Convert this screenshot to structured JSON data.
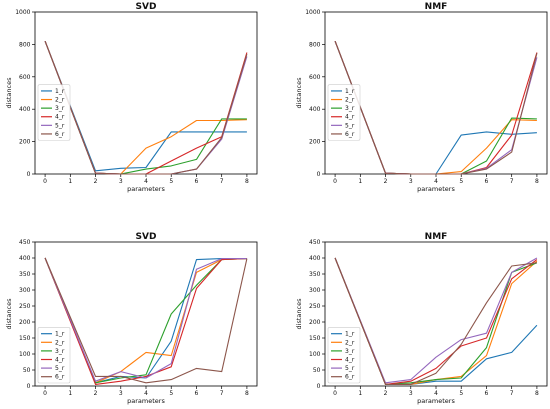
{
  "chart_data": [
    {
      "type": "line",
      "title": "SVD",
      "xlabel": "parameters",
      "ylabel": "distances",
      "xlim": [
        -0.4,
        8.4
      ],
      "ylim": [
        0,
        1000
      ],
      "xticks": [
        "0",
        "1",
        "2",
        "3",
        "4",
        "5",
        "6",
        "7",
        "8"
      ],
      "yticks": [
        "0",
        "200",
        "400",
        "600",
        "800",
        "1000"
      ],
      "legend_position": "center-left",
      "series": [
        {
          "name": "1_r",
          "color": "#1f77b4",
          "x": [
            0,
            2,
            3,
            4,
            5,
            6,
            7,
            8
          ],
          "y": [
            820,
            20,
            35,
            40,
            260,
            260,
            260,
            260
          ]
        },
        {
          "name": "2_r",
          "color": "#ff7f0e",
          "x": [
            0,
            2,
            3,
            4,
            5,
            6,
            7,
            8
          ],
          "y": [
            820,
            5,
            0,
            160,
            230,
            330,
            330,
            335
          ]
        },
        {
          "name": "3_r",
          "color": "#2ca02c",
          "x": [
            0,
            2,
            3,
            4,
            5,
            6,
            7,
            8
          ],
          "y": [
            820,
            5,
            0,
            30,
            50,
            90,
            340,
            340
          ]
        },
        {
          "name": "4_r",
          "color": "#d62728",
          "x": [
            0,
            2,
            3,
            4,
            5,
            6,
            7,
            8
          ],
          "y": [
            820,
            5,
            0,
            0,
            80,
            160,
            230,
            750
          ]
        },
        {
          "name": "5_r",
          "color": "#9467bd",
          "x": [
            0,
            2,
            3,
            4,
            5,
            6,
            7,
            8
          ],
          "y": [
            820,
            5,
            0,
            0,
            0,
            30,
            215,
            725
          ]
        },
        {
          "name": "6_r",
          "color": "#8c564b",
          "x": [
            0,
            2,
            3,
            4,
            5,
            6,
            7,
            8
          ],
          "y": [
            820,
            5,
            0,
            0,
            0,
            30,
            225,
            740
          ]
        }
      ]
    },
    {
      "type": "line",
      "title": "NMF",
      "xlabel": "parameters",
      "ylabel": "distances",
      "xlim": [
        -0.4,
        8.4
      ],
      "ylim": [
        0,
        1000
      ],
      "xticks": [
        "0",
        "1",
        "2",
        "3",
        "4",
        "5",
        "6",
        "7",
        "8"
      ],
      "yticks": [
        "0",
        "200",
        "400",
        "600",
        "800",
        "1000"
      ],
      "legend_position": "center-left",
      "series": [
        {
          "name": "1_r",
          "color": "#1f77b4",
          "x": [
            0,
            2,
            3,
            4,
            5,
            6,
            7,
            8
          ],
          "y": [
            820,
            5,
            0,
            0,
            240,
            260,
            245,
            255
          ]
        },
        {
          "name": "2_r",
          "color": "#ff7f0e",
          "x": [
            0,
            2,
            3,
            4,
            5,
            6,
            7,
            8
          ],
          "y": [
            820,
            5,
            0,
            0,
            15,
            160,
            335,
            330
          ]
        },
        {
          "name": "3_r",
          "color": "#2ca02c",
          "x": [
            0,
            2,
            3,
            4,
            5,
            6,
            7,
            8
          ],
          "y": [
            820,
            5,
            0,
            0,
            0,
            80,
            345,
            340
          ]
        },
        {
          "name": "4_r",
          "color": "#d62728",
          "x": [
            0,
            2,
            3,
            4,
            5,
            6,
            7,
            8
          ],
          "y": [
            820,
            5,
            0,
            0,
            0,
            40,
            240,
            750
          ]
        },
        {
          "name": "5_r",
          "color": "#9467bd",
          "x": [
            0,
            2,
            3,
            4,
            5,
            6,
            7,
            8
          ],
          "y": [
            820,
            5,
            0,
            0,
            0,
            35,
            150,
            720
          ]
        },
        {
          "name": "6_r",
          "color": "#8c564b",
          "x": [
            0,
            2,
            3,
            4,
            5,
            6,
            7,
            8
          ],
          "y": [
            820,
            5,
            0,
            0,
            0,
            30,
            135,
            745
          ]
        }
      ]
    },
    {
      "type": "line",
      "title": "SVD",
      "xlabel": "parameters",
      "ylabel": "distances",
      "xlim": [
        -0.4,
        8.4
      ],
      "ylim": [
        0,
        450
      ],
      "xticks": [
        "0",
        "1",
        "2",
        "3",
        "4",
        "5",
        "6",
        "7",
        "8"
      ],
      "yticks": [
        "0",
        "50",
        "100",
        "150",
        "200",
        "250",
        "300",
        "350",
        "400",
        "450"
      ],
      "legend_position": "lower-left",
      "series": [
        {
          "name": "1_r",
          "color": "#1f77b4",
          "x": [
            0,
            2,
            3,
            4,
            5,
            6,
            7,
            8
          ],
          "y": [
            400,
            10,
            30,
            25,
            140,
            395,
            398,
            398
          ]
        },
        {
          "name": "2_r",
          "color": "#ff7f0e",
          "x": [
            0,
            2,
            3,
            4,
            5,
            6,
            7,
            8
          ],
          "y": [
            400,
            10,
            45,
            105,
            95,
            355,
            395,
            398
          ]
        },
        {
          "name": "3_r",
          "color": "#2ca02c",
          "x": [
            0,
            2,
            3,
            4,
            5,
            6,
            7,
            8
          ],
          "y": [
            400,
            10,
            25,
            35,
            225,
            315,
            395,
            398
          ]
        },
        {
          "name": "4_r",
          "color": "#d62728",
          "x": [
            0,
            2,
            3,
            4,
            5,
            6,
            7,
            8
          ],
          "y": [
            400,
            5,
            15,
            30,
            60,
            305,
            395,
            398
          ]
        },
        {
          "name": "5_r",
          "color": "#9467bd",
          "x": [
            0,
            2,
            3,
            4,
            5,
            6,
            7,
            8
          ],
          "y": [
            400,
            15,
            45,
            25,
            70,
            365,
            398,
            398
          ]
        },
        {
          "name": "6_r",
          "color": "#8c564b",
          "x": [
            0,
            2,
            3,
            4,
            5,
            6,
            7,
            8
          ],
          "y": [
            400,
            30,
            30,
            10,
            20,
            55,
            45,
            398
          ]
        }
      ]
    },
    {
      "type": "line",
      "title": "NMF",
      "xlabel": "parameters",
      "ylabel": "distances",
      "xlim": [
        -0.4,
        8.4
      ],
      "ylim": [
        0,
        450
      ],
      "xticks": [
        "0",
        "1",
        "2",
        "3",
        "4",
        "5",
        "6",
        "7",
        "8"
      ],
      "yticks": [
        "0",
        "50",
        "100",
        "150",
        "200",
        "250",
        "300",
        "350",
        "400",
        "450"
      ],
      "legend_position": "lower-left",
      "series": [
        {
          "name": "1_r",
          "color": "#1f77b4",
          "x": [
            0,
            2,
            3,
            4,
            5,
            6,
            7,
            8
          ],
          "y": [
            400,
            5,
            5,
            15,
            15,
            85,
            105,
            190
          ]
        },
        {
          "name": "2_r",
          "color": "#ff7f0e",
          "x": [
            0,
            2,
            3,
            4,
            5,
            6,
            7,
            8
          ],
          "y": [
            400,
            5,
            5,
            20,
            30,
            95,
            320,
            390
          ]
        },
        {
          "name": "3_r",
          "color": "#2ca02c",
          "x": [
            0,
            2,
            3,
            4,
            5,
            6,
            7,
            8
          ],
          "y": [
            400,
            5,
            10,
            20,
            25,
            120,
            355,
            385
          ]
        },
        {
          "name": "4_r",
          "color": "#d62728",
          "x": [
            0,
            2,
            3,
            4,
            5,
            6,
            7,
            8
          ],
          "y": [
            400,
            5,
            15,
            55,
            125,
            150,
            335,
            395
          ]
        },
        {
          "name": "5_r",
          "color": "#9467bd",
          "x": [
            0,
            2,
            3,
            4,
            5,
            6,
            7,
            8
          ],
          "y": [
            400,
            10,
            20,
            90,
            145,
            165,
            355,
            400
          ]
        },
        {
          "name": "6_r",
          "color": "#8c564b",
          "x": [
            0,
            2,
            3,
            4,
            5,
            6,
            7,
            8
          ],
          "y": [
            400,
            5,
            5,
            40,
            130,
            260,
            375,
            385
          ]
        }
      ]
    }
  ]
}
